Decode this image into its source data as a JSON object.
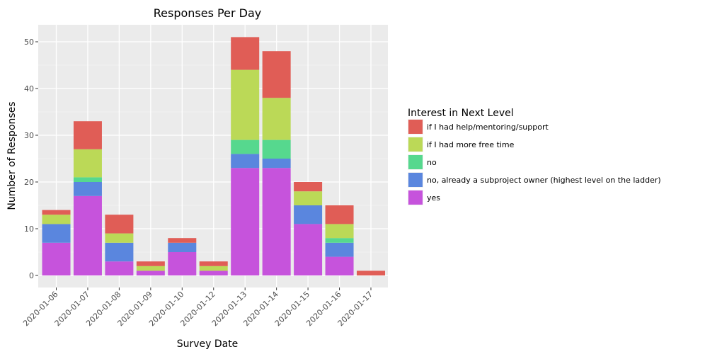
{
  "chart_data": {
    "type": "bar",
    "stacked": true,
    "title": "Responses Per Day",
    "xlabel": "Survey Date",
    "ylabel": "Number of Responses",
    "ylim": [
      0,
      53
    ],
    "yticks": [
      0,
      10,
      20,
      30,
      40,
      50
    ],
    "grid": true,
    "legend_position": "right",
    "legend_title": "Interest in Next Level",
    "categories": [
      "2020-01-06",
      "2020-01-07",
      "2020-01-08",
      "2020-01-09",
      "2020-01-10",
      "2020-01-12",
      "2020-01-13",
      "2020-01-14",
      "2020-01-15",
      "2020-01-16",
      "2020-01-17"
    ],
    "series": [
      {
        "name": "yes",
        "color": "#c653dc",
        "values": [
          7,
          17,
          3,
          1,
          5,
          1,
          23,
          23,
          11,
          4,
          0
        ]
      },
      {
        "name": "no, already a subproject owner (highest level on the ladder)",
        "color": "#5a86de",
        "values": [
          4,
          3,
          4,
          0,
          2,
          0,
          3,
          2,
          4,
          3,
          0
        ]
      },
      {
        "name": "no",
        "color": "#56d88e",
        "values": [
          0,
          1,
          0,
          0,
          0,
          0,
          3,
          4,
          0,
          1,
          0
        ]
      },
      {
        "name": "if I had more free time",
        "color": "#bbd957",
        "values": [
          2,
          6,
          2,
          1,
          0,
          1,
          15,
          9,
          3,
          3,
          0
        ]
      },
      {
        "name": "if I had help/mentoring/support",
        "color": "#e05d56",
        "values": [
          1,
          6,
          4,
          1,
          1,
          1,
          7,
          10,
          2,
          4,
          1
        ]
      }
    ],
    "legend_order": [
      "if I had help/mentoring/support",
      "if I had more free time",
      "no",
      "no, already a subproject owner (highest level on the ladder)",
      "yes"
    ]
  }
}
